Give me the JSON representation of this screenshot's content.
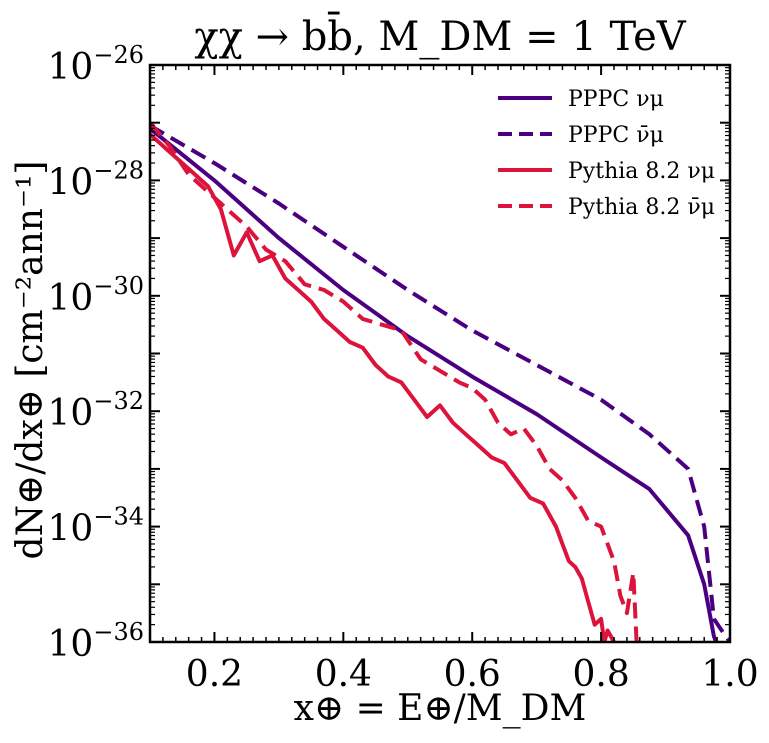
{
  "chart_data": {
    "type": "line",
    "title": "χχ → bb̄, M_DM = 1 TeV",
    "xlabel": "x⊕ = E⊕/M_DM",
    "ylabel": "dN⊕/dx⊕ [cm⁻²ann⁻¹]",
    "xlim": [
      0.1,
      1.0
    ],
    "ylim_exp": [
      -36,
      -26
    ],
    "yscale": "log",
    "xticks": [
      {
        "value": 0.2,
        "label": "0.2"
      },
      {
        "value": 0.4,
        "label": "0.4"
      },
      {
        "value": 0.6,
        "label": "0.6"
      },
      {
        "value": 0.8,
        "label": "0.8"
      },
      {
        "value": 1.0,
        "label": "1.0"
      }
    ],
    "yticks": [
      {
        "exp": -26,
        "base": "10",
        "sup": "−26"
      },
      {
        "exp": -28,
        "base": "10",
        "sup": "−28"
      },
      {
        "exp": -30,
        "base": "10",
        "sup": "−30"
      },
      {
        "exp": -32,
        "base": "10",
        "sup": "−32"
      },
      {
        "exp": -34,
        "base": "10",
        "sup": "−34"
      },
      {
        "exp": -36,
        "base": "10",
        "sup": "−36"
      }
    ],
    "legend_position": "top-right",
    "series": [
      {
        "name": "PPPC νμ",
        "color": "#4b0082",
        "dash": "solid",
        "x": [
          0.1,
          0.2,
          0.3,
          0.4,
          0.5,
          0.6,
          0.7,
          0.8,
          0.875,
          0.935,
          0.96,
          0.975,
          0.985
        ],
        "log_y": [
          -27.1,
          -28.0,
          -29.0,
          -29.9,
          -30.7,
          -31.4,
          -32.05,
          -32.8,
          -33.35,
          -34.15,
          -35.0,
          -35.9,
          -36.2
        ]
      },
      {
        "name": "PPPC ν̄μ",
        "color": "#4b0082",
        "dash": "dashed",
        "x": [
          0.1,
          0.2,
          0.3,
          0.4,
          0.5,
          0.6,
          0.7,
          0.8,
          0.875,
          0.935,
          0.96,
          0.975,
          0.99,
          1.0
        ],
        "log_y": [
          -27.05,
          -27.7,
          -28.4,
          -29.15,
          -29.9,
          -30.6,
          -31.2,
          -31.8,
          -32.4,
          -33.0,
          -34.0,
          -35.6,
          -35.85,
          -36.0
        ]
      },
      {
        "name": "Pythia 8.2 νμ",
        "color": "#dc143c",
        "dash": "solid",
        "x": [
          0.1,
          0.13,
          0.16,
          0.19,
          0.21,
          0.23,
          0.25,
          0.27,
          0.29,
          0.31,
          0.33,
          0.35,
          0.37,
          0.39,
          0.41,
          0.43,
          0.45,
          0.47,
          0.49,
          0.51,
          0.53,
          0.55,
          0.57,
          0.59,
          0.61,
          0.63,
          0.65,
          0.67,
          0.69,
          0.71,
          0.72,
          0.73,
          0.74,
          0.75,
          0.76,
          0.77,
          0.78,
          0.79,
          0.8,
          0.805,
          0.81,
          0.82
        ],
        "log_y": [
          -27.2,
          -27.5,
          -27.8,
          -28.1,
          -28.5,
          -29.3,
          -28.9,
          -29.4,
          -29.3,
          -29.7,
          -29.9,
          -30.1,
          -30.4,
          -30.6,
          -30.8,
          -30.9,
          -31.2,
          -31.4,
          -31.5,
          -31.8,
          -32.1,
          -31.9,
          -32.2,
          -32.4,
          -32.6,
          -32.8,
          -32.9,
          -33.2,
          -33.5,
          -33.6,
          -33.8,
          -34.0,
          -34.3,
          -34.6,
          -34.7,
          -34.9,
          -35.3,
          -35.7,
          -35.6,
          -36.0,
          -35.8,
          -36.0
        ]
      },
      {
        "name": "Pythia 8.2 ν̄μ",
        "color": "#dc143c",
        "dash": "dashed",
        "x": [
          0.1,
          0.13,
          0.16,
          0.19,
          0.22,
          0.25,
          0.28,
          0.31,
          0.34,
          0.37,
          0.4,
          0.43,
          0.46,
          0.49,
          0.52,
          0.55,
          0.58,
          0.6,
          0.62,
          0.64,
          0.66,
          0.68,
          0.7,
          0.72,
          0.74,
          0.76,
          0.78,
          0.8,
          0.82,
          0.83,
          0.84,
          0.85,
          0.855
        ],
        "log_y": [
          -27.0,
          -27.4,
          -27.9,
          -28.2,
          -28.5,
          -28.8,
          -29.2,
          -29.4,
          -29.8,
          -29.9,
          -30.1,
          -30.4,
          -30.5,
          -30.6,
          -31.1,
          -31.3,
          -31.5,
          -31.6,
          -31.8,
          -32.2,
          -32.4,
          -32.3,
          -32.6,
          -33.0,
          -33.2,
          -33.5,
          -33.9,
          -34.0,
          -34.6,
          -35.2,
          -35.5,
          -34.8,
          -36.0
        ]
      }
    ]
  }
}
